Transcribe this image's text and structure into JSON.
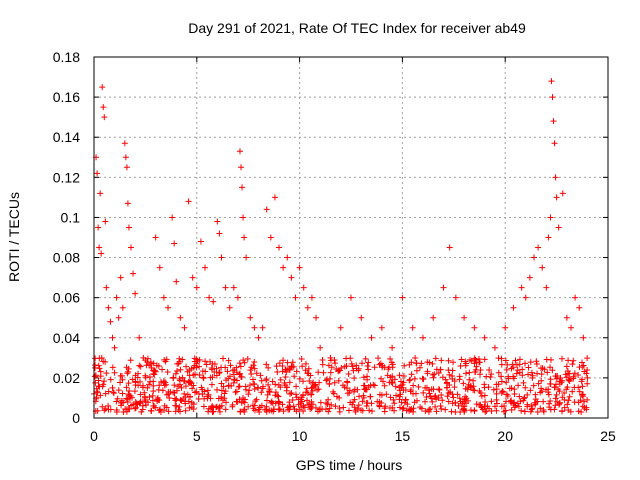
{
  "chart_data": {
    "type": "scatter",
    "title": "Day 291 of 2021, Rate Of TEC Index for receiver ab49",
    "xlabel": "GPS time / hours",
    "ylabel": "ROTI / TECUs",
    "xlim": [
      0,
      25
    ],
    "ylim": [
      0,
      0.18
    ],
    "x_ticks": [
      "0",
      "5",
      "10",
      "15",
      "20",
      "25"
    ],
    "y_ticks": [
      "0",
      "0.02",
      "0.04",
      "0.06",
      "0.08",
      "0.1",
      "0.12",
      "0.14",
      "0.16",
      "0.18"
    ],
    "grid": true,
    "marker": "plus",
    "color": "#ff0000",
    "series": [
      {
        "points": [
          [
            0.0,
            0.012
          ],
          [
            0.05,
            0.025
          ],
          [
            0.1,
            0.13
          ],
          [
            0.15,
            0.122
          ],
          [
            0.2,
            0.095
          ],
          [
            0.25,
            0.085
          ],
          [
            0.3,
            0.112
          ],
          [
            0.35,
            0.082
          ],
          [
            0.4,
            0.165
          ],
          [
            0.45,
            0.155
          ],
          [
            0.5,
            0.15
          ],
          [
            0.55,
            0.098
          ],
          [
            0.6,
            0.065
          ],
          [
            0.7,
            0.055
          ],
          [
            0.8,
            0.048
          ],
          [
            0.9,
            0.04
          ],
          [
            1.0,
            0.035
          ],
          [
            1.1,
            0.06
          ],
          [
            1.2,
            0.05
          ],
          [
            1.3,
            0.07
          ],
          [
            1.4,
            0.055
          ],
          [
            1.5,
            0.137
          ],
          [
            1.55,
            0.13
          ],
          [
            1.6,
            0.125
          ],
          [
            1.65,
            0.107
          ],
          [
            1.7,
            0.095
          ],
          [
            1.8,
            0.085
          ],
          [
            1.9,
            0.072
          ],
          [
            2.0,
            0.062
          ],
          [
            2.2,
            0.04
          ],
          [
            2.4,
            0.03
          ],
          [
            2.6,
            0.028
          ],
          [
            2.8,
            0.025
          ],
          [
            3.0,
            0.09
          ],
          [
            3.2,
            0.075
          ],
          [
            3.4,
            0.06
          ],
          [
            3.6,
            0.055
          ],
          [
            3.8,
            0.1
          ],
          [
            3.9,
            0.087
          ],
          [
            4.0,
            0.068
          ],
          [
            4.2,
            0.05
          ],
          [
            4.4,
            0.045
          ],
          [
            4.6,
            0.108
          ],
          [
            4.8,
            0.07
          ],
          [
            5.0,
            0.065
          ],
          [
            5.2,
            0.088
          ],
          [
            5.4,
            0.075
          ],
          [
            5.6,
            0.06
          ],
          [
            5.8,
            0.058
          ],
          [
            6.0,
            0.098
          ],
          [
            6.1,
            0.092
          ],
          [
            6.2,
            0.08
          ],
          [
            6.4,
            0.065
          ],
          [
            6.6,
            0.055
          ],
          [
            6.8,
            0.065
          ],
          [
            7.0,
            0.06
          ],
          [
            7.1,
            0.133
          ],
          [
            7.15,
            0.125
          ],
          [
            7.2,
            0.115
          ],
          [
            7.25,
            0.1
          ],
          [
            7.3,
            0.09
          ],
          [
            7.4,
            0.08
          ],
          [
            7.6,
            0.05
          ],
          [
            7.8,
            0.045
          ],
          [
            8.0,
            0.04
          ],
          [
            8.2,
            0.045
          ],
          [
            8.4,
            0.104
          ],
          [
            8.6,
            0.09
          ],
          [
            8.8,
            0.11
          ],
          [
            9.0,
            0.085
          ],
          [
            9.2,
            0.075
          ],
          [
            9.4,
            0.08
          ],
          [
            9.6,
            0.07
          ],
          [
            9.8,
            0.06
          ],
          [
            10.0,
            0.075
          ],
          [
            10.2,
            0.065
          ],
          [
            10.4,
            0.055
          ],
          [
            10.6,
            0.06
          ],
          [
            10.8,
            0.05
          ],
          [
            11.0,
            0.035
          ],
          [
            11.5,
            0.03
          ],
          [
            12.0,
            0.045
          ],
          [
            12.5,
            0.06
          ],
          [
            13.0,
            0.05
          ],
          [
            13.5,
            0.04
          ],
          [
            14.0,
            0.045
          ],
          [
            14.5,
            0.035
          ],
          [
            15.0,
            0.06
          ],
          [
            15.5,
            0.045
          ],
          [
            16.0,
            0.04
          ],
          [
            16.5,
            0.05
          ],
          [
            17.0,
            0.065
          ],
          [
            17.3,
            0.085
          ],
          [
            17.6,
            0.06
          ],
          [
            18.0,
            0.05
          ],
          [
            18.5,
            0.045
          ],
          [
            19.0,
            0.04
          ],
          [
            19.5,
            0.035
          ],
          [
            20.0,
            0.045
          ],
          [
            20.4,
            0.055
          ],
          [
            20.8,
            0.065
          ],
          [
            21.0,
            0.06
          ],
          [
            21.2,
            0.07
          ],
          [
            21.4,
            0.08
          ],
          [
            21.6,
            0.085
          ],
          [
            21.8,
            0.075
          ],
          [
            22.0,
            0.065
          ],
          [
            22.1,
            0.09
          ],
          [
            22.2,
            0.1
          ],
          [
            22.25,
            0.168
          ],
          [
            22.3,
            0.16
          ],
          [
            22.35,
            0.148
          ],
          [
            22.4,
            0.137
          ],
          [
            22.45,
            0.12
          ],
          [
            22.5,
            0.11
          ],
          [
            22.6,
            0.095
          ],
          [
            22.8,
            0.112
          ],
          [
            23.0,
            0.05
          ],
          [
            23.2,
            0.045
          ],
          [
            23.4,
            0.06
          ],
          [
            23.6,
            0.055
          ],
          [
            23.8,
            0.04
          ],
          [
            24.0,
            0.02
          ]
        ]
      }
    ],
    "noise_floor": {
      "xmin": 0,
      "xmax": 24,
      "ymin": 0.003,
      "ymax": 0.03,
      "count": 1100
    }
  }
}
